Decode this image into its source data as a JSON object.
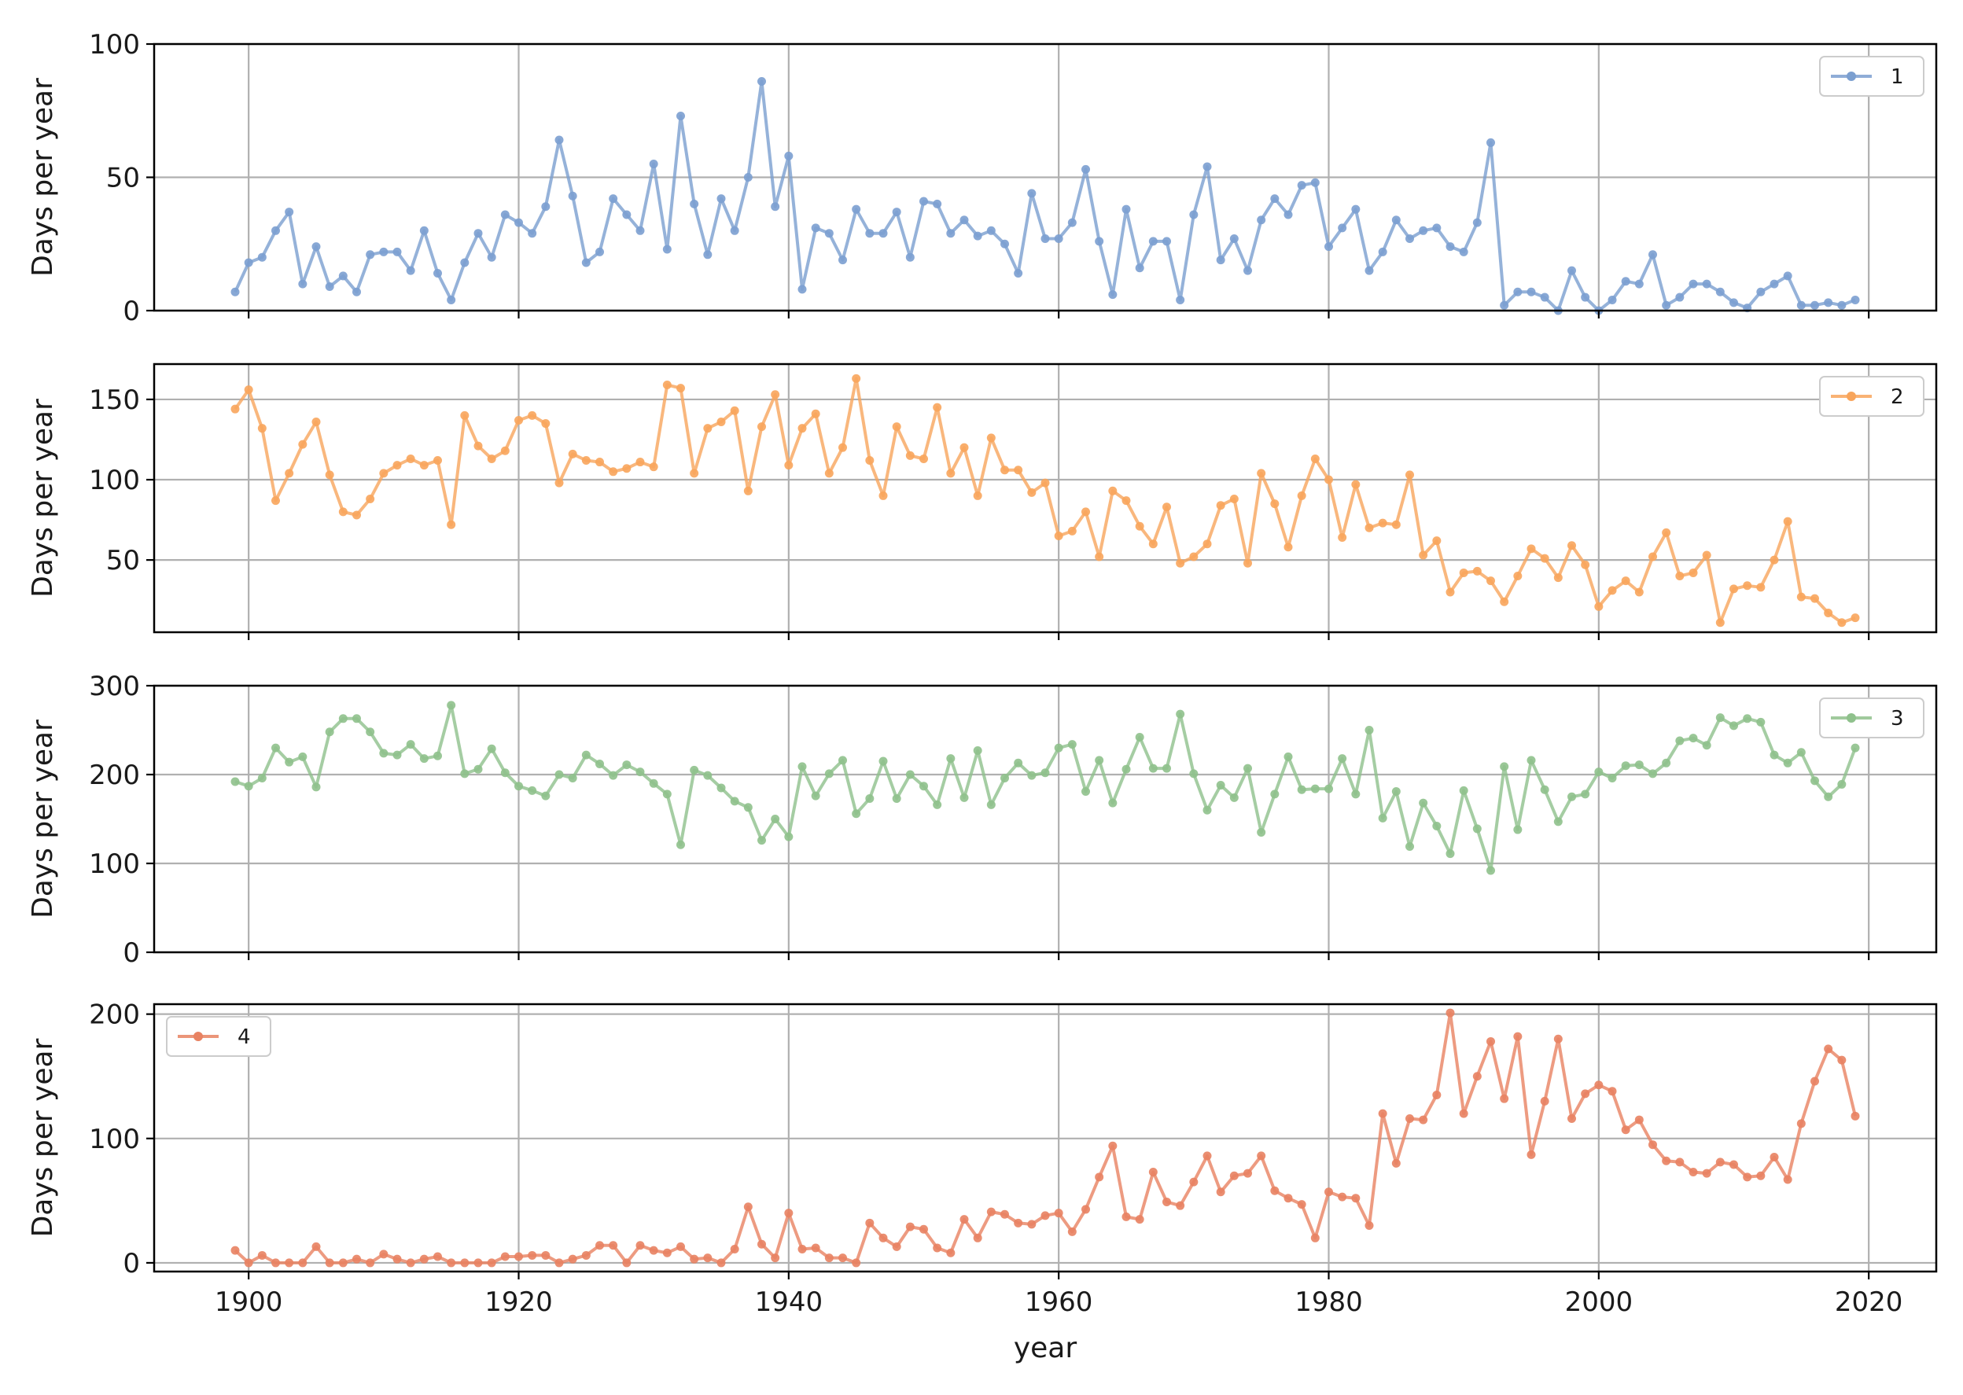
{
  "chart_data": {
    "type": "line",
    "xlabel": "year",
    "x": [
      1899,
      1900,
      1901,
      1902,
      1903,
      1904,
      1905,
      1906,
      1907,
      1908,
      1909,
      1910,
      1911,
      1912,
      1913,
      1914,
      1915,
      1916,
      1917,
      1918,
      1919,
      1920,
      1921,
      1922,
      1923,
      1924,
      1925,
      1926,
      1927,
      1928,
      1929,
      1930,
      1931,
      1932,
      1933,
      1934,
      1935,
      1936,
      1937,
      1938,
      1939,
      1940,
      1941,
      1942,
      1943,
      1944,
      1945,
      1946,
      1947,
      1948,
      1949,
      1950,
      1951,
      1952,
      1953,
      1954,
      1955,
      1956,
      1957,
      1958,
      1959,
      1960,
      1961,
      1962,
      1963,
      1964,
      1965,
      1966,
      1967,
      1968,
      1969,
      1970,
      1971,
      1972,
      1973,
      1974,
      1975,
      1976,
      1977,
      1978,
      1979,
      1980,
      1981,
      1982,
      1983,
      1984,
      1985,
      1986,
      1987,
      1988,
      1989,
      1990,
      1991,
      1992,
      1993,
      1994,
      1995,
      1996,
      1997,
      1998,
      1999,
      2000,
      2001,
      2002,
      2003,
      2004,
      2005,
      2006,
      2007,
      2008,
      2009,
      2010,
      2011,
      2012,
      2013,
      2014,
      2015,
      2016,
      2017,
      2018,
      2019
    ],
    "xlim": [
      1893,
      2025
    ],
    "xticks": [
      "1900",
      "1920",
      "1940",
      "1960",
      "1980",
      "2000",
      "2020"
    ],
    "grid": true,
    "panels": [
      {
        "name": "1",
        "color": "#7b9fd0",
        "ylabel": "Days per year",
        "ylim": [
          0,
          100
        ],
        "yticks": [
          "0",
          "50",
          "100"
        ],
        "legend_position": "top-right",
        "values": [
          7,
          18,
          20,
          30,
          37,
          10,
          24,
          9,
          13,
          7,
          21,
          22,
          22,
          15,
          30,
          14,
          4,
          18,
          29,
          20,
          36,
          33,
          29,
          39,
          64,
          43,
          18,
          22,
          42,
          36,
          30,
          55,
          23,
          73,
          40,
          21,
          42,
          30,
          50,
          86,
          39,
          58,
          8,
          31,
          29,
          19,
          38,
          29,
          29,
          37,
          20,
          41,
          40,
          29,
          34,
          28,
          30,
          25,
          14,
          44,
          27,
          27,
          33,
          53,
          26,
          6,
          38,
          16,
          26,
          26,
          4,
          36,
          54,
          19,
          27,
          15,
          34,
          42,
          36,
          47,
          48,
          24,
          31,
          38,
          15,
          22,
          34,
          27,
          30,
          31,
          24,
          22,
          33,
          63,
          2,
          7,
          7,
          5,
          0,
          15,
          5,
          0,
          4,
          11,
          10,
          21,
          2,
          5,
          10,
          10,
          7,
          3,
          1,
          7,
          10,
          13,
          2,
          2,
          3,
          2,
          4
        ]
      },
      {
        "name": "2",
        "color": "#f8a55c",
        "ylabel": "Days per year",
        "ylim": [
          5,
          172
        ],
        "yticks": [
          "50",
          "100",
          "150"
        ],
        "legend_position": "top-right",
        "values": [
          144,
          156,
          132,
          87,
          104,
          122,
          136,
          103,
          80,
          78,
          88,
          104,
          109,
          113,
          109,
          112,
          72,
          140,
          121,
          113,
          118,
          137,
          140,
          135,
          98,
          116,
          112,
          111,
          105,
          107,
          111,
          108,
          159,
          157,
          104,
          132,
          136,
          143,
          93,
          133,
          153,
          109,
          132,
          141,
          104,
          120,
          163,
          112,
          90,
          133,
          115,
          113,
          145,
          104,
          120,
          90,
          126,
          106,
          106,
          92,
          98,
          65,
          68,
          80,
          52,
          93,
          87,
          71,
          60,
          83,
          48,
          52,
          60,
          84,
          88,
          48,
          104,
          85,
          58,
          90,
          113,
          100,
          64,
          97,
          70,
          73,
          72,
          103,
          53,
          62,
          30,
          42,
          43,
          37,
          24,
          40,
          57,
          51,
          39,
          59,
          47,
          21,
          31,
          37,
          30,
          52,
          67,
          40,
          42,
          53,
          11,
          32,
          34,
          33,
          50,
          74,
          27,
          26,
          17,
          11,
          14
        ]
      },
      {
        "name": "3",
        "color": "#8fc18c",
        "ylabel": "Days per year",
        "ylim": [
          0,
          300
        ],
        "yticks": [
          "0",
          "100",
          "200",
          "300"
        ],
        "legend_position": "top-right",
        "values": [
          192,
          187,
          196,
          230,
          214,
          220,
          186,
          248,
          263,
          263,
          248,
          224,
          222,
          234,
          218,
          221,
          278,
          201,
          206,
          229,
          202,
          187,
          182,
          176,
          200,
          196,
          222,
          212,
          199,
          211,
          203,
          190,
          178,
          121,
          205,
          199,
          185,
          170,
          163,
          126,
          150,
          130,
          209,
          176,
          201,
          216,
          156,
          173,
          215,
          173,
          200,
          187,
          166,
          218,
          174,
          227,
          166,
          196,
          213,
          199,
          202,
          230,
          234,
          181,
          216,
          168,
          206,
          242,
          207,
          207,
          268,
          201,
          160,
          188,
          174,
          207,
          135,
          178,
          220,
          183,
          184,
          184,
          218,
          178,
          250,
          151,
          181,
          119,
          168,
          142,
          111,
          182,
          139,
          92,
          209,
          138,
          216,
          183,
          147,
          175,
          178,
          203,
          196,
          210,
          211,
          201,
          213,
          238,
          241,
          233,
          264,
          255,
          263,
          259,
          222,
          213,
          225,
          193,
          175,
          189,
          230
        ]
      },
      {
        "name": "4",
        "color": "#e88262",
        "ylabel": "Days per year",
        "ylim": [
          -7,
          208
        ],
        "yticks": [
          "0",
          "100",
          "200"
        ],
        "legend_position": "top-left",
        "values": [
          10,
          0,
          6,
          0,
          0,
          0,
          13,
          0,
          0,
          3,
          0,
          7,
          3,
          0,
          3,
          5,
          0,
          0,
          0,
          0,
          5,
          5,
          6,
          6,
          0,
          3,
          6,
          14,
          14,
          0,
          14,
          10,
          8,
          13,
          3,
          4,
          0,
          11,
          45,
          15,
          4,
          40,
          11,
          12,
          4,
          4,
          0,
          32,
          20,
          13,
          29,
          27,
          12,
          8,
          35,
          20,
          41,
          39,
          32,
          31,
          38,
          40,
          25,
          43,
          69,
          94,
          37,
          35,
          73,
          49,
          46,
          65,
          86,
          57,
          70,
          72,
          86,
          58,
          52,
          47,
          20,
          57,
          53,
          52,
          30,
          120,
          80,
          116,
          115,
          135,
          201,
          120,
          150,
          178,
          132,
          182,
          87,
          130,
          180,
          116,
          136,
          143,
          138,
          107,
          115,
          95,
          82,
          81,
          73,
          72,
          81,
          79,
          69,
          70,
          85,
          67,
          112,
          146,
          172,
          163,
          118
        ]
      }
    ]
  }
}
